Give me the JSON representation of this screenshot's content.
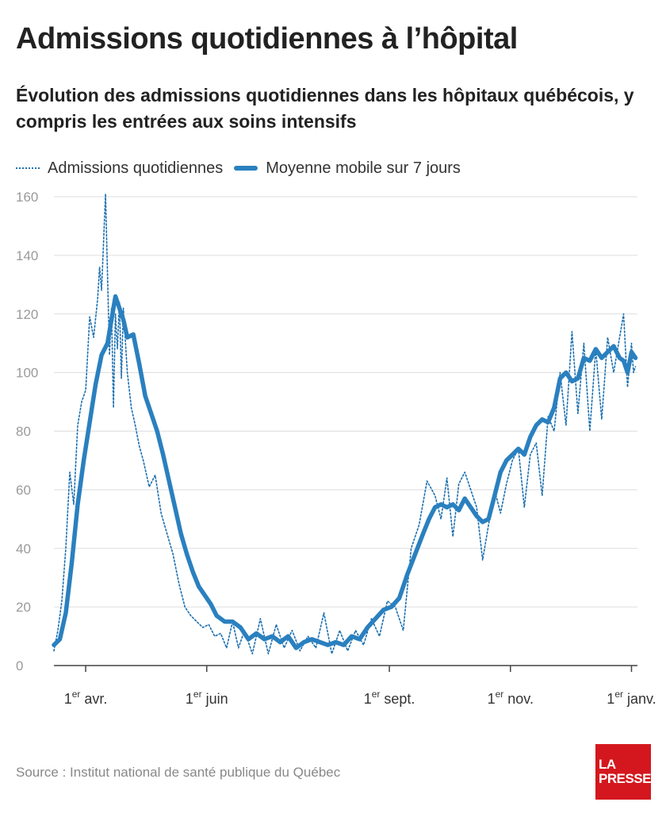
{
  "header": {
    "title": "Admissions quotidiennes à l’hôpital",
    "subtitle": "Évolution des admissions quotidiennes dans les hôpitaux québécois, y compris les entrées aux soins intensifs"
  },
  "legend": {
    "daily_label": "Admissions quotidiennes",
    "avg_label": "Moyenne mobile sur 7 jours"
  },
  "footer": {
    "source": "Source : Institut national de santé publique du Québec"
  },
  "logo": {
    "line1": "LA",
    "line2": "PRESSE"
  },
  "colors": {
    "series": "#2a80bf",
    "daily": "#1a6fb0",
    "grid": "#dddddd",
    "logo_bg": "#d4171e"
  },
  "chart_data": {
    "type": "line",
    "title": "Admissions quotidiennes à l’hôpital",
    "xlabel": "",
    "ylabel": "",
    "ylim": [
      0,
      160
    ],
    "yticks": [
      0,
      20,
      40,
      60,
      80,
      100,
      120,
      140,
      160
    ],
    "xlim": [
      "2020-03-16",
      "2021-01-04"
    ],
    "xticks": [
      {
        "date": "2020-04-01",
        "num": "1",
        "sup": "er",
        "month": "avr."
      },
      {
        "date": "2020-06-01",
        "num": "1",
        "sup": "er",
        "month": "juin"
      },
      {
        "date": "2020-09-01",
        "num": "1",
        "sup": "er",
        "month": "sept."
      },
      {
        "date": "2020-11-01",
        "num": "1",
        "sup": "er",
        "month": "nov."
      },
      {
        "date": "2021-01-01",
        "num": "1",
        "sup": "er",
        "month": "janv."
      }
    ],
    "grid": true,
    "legend_position": "top-left",
    "series": [
      {
        "name": "Admissions quotidiennes",
        "style": "dotted",
        "x": [
          "2020-03-16",
          "2020-03-18",
          "2020-03-20",
          "2020-03-22",
          "2020-03-24",
          "2020-03-26",
          "2020-03-28",
          "2020-03-30",
          "2020-04-01",
          "2020-04-03",
          "2020-04-05",
          "2020-04-07",
          "2020-04-08",
          "2020-04-09",
          "2020-04-11",
          "2020-04-13",
          "2020-04-14",
          "2020-04-15",
          "2020-04-16",
          "2020-04-17",
          "2020-04-18",
          "2020-04-19",
          "2020-04-20",
          "2020-04-22",
          "2020-04-24",
          "2020-04-26",
          "2020-04-28",
          "2020-04-30",
          "2020-05-03",
          "2020-05-06",
          "2020-05-09",
          "2020-05-12",
          "2020-05-15",
          "2020-05-18",
          "2020-05-21",
          "2020-05-24",
          "2020-05-27",
          "2020-05-30",
          "2020-06-02",
          "2020-06-05",
          "2020-06-08",
          "2020-06-11",
          "2020-06-14",
          "2020-06-17",
          "2020-06-20",
          "2020-06-24",
          "2020-06-28",
          "2020-07-02",
          "2020-07-06",
          "2020-07-10",
          "2020-07-14",
          "2020-07-18",
          "2020-07-22",
          "2020-07-26",
          "2020-07-30",
          "2020-08-03",
          "2020-08-07",
          "2020-08-11",
          "2020-08-15",
          "2020-08-19",
          "2020-08-23",
          "2020-08-27",
          "2020-08-31",
          "2020-09-04",
          "2020-09-08",
          "2020-09-12",
          "2020-09-16",
          "2020-09-20",
          "2020-09-24",
          "2020-09-27",
          "2020-09-30",
          "2020-10-03",
          "2020-10-06",
          "2020-10-09",
          "2020-10-12",
          "2020-10-15",
          "2020-10-18",
          "2020-10-21",
          "2020-10-24",
          "2020-10-27",
          "2020-10-30",
          "2020-11-02",
          "2020-11-05",
          "2020-11-08",
          "2020-11-11",
          "2020-11-14",
          "2020-11-17",
          "2020-11-20",
          "2020-11-23",
          "2020-11-26",
          "2020-11-29",
          "2020-12-02",
          "2020-12-05",
          "2020-12-08",
          "2020-12-11",
          "2020-12-14",
          "2020-12-17",
          "2020-12-20",
          "2020-12-23",
          "2020-12-26",
          "2020-12-28",
          "2020-12-30",
          "2021-01-01",
          "2021-01-02",
          "2021-01-03"
        ],
        "y": [
          5,
          12,
          22,
          40,
          66,
          55,
          82,
          90,
          94,
          119,
          112,
          125,
          136,
          128,
          161,
          106,
          122,
          88,
          120,
          108,
          124,
          98,
          122,
          100,
          88,
          82,
          75,
          70,
          61,
          65,
          52,
          45,
          38,
          28,
          20,
          17,
          15,
          13,
          14,
          10,
          11,
          6,
          15,
          6,
          12,
          4,
          16,
          4,
          14,
          6,
          12,
          5,
          10,
          6,
          18,
          4,
          12,
          5,
          12,
          7,
          16,
          10,
          22,
          20,
          12,
          40,
          48,
          63,
          58,
          50,
          64,
          44,
          62,
          66,
          60,
          54,
          36,
          48,
          60,
          52,
          62,
          70,
          74,
          54,
          72,
          76,
          58,
          85,
          80,
          100,
          82,
          114,
          86,
          110,
          80,
          108,
          84,
          112,
          100,
          112,
          120,
          95,
          110,
          100,
          102
        ],
        "values": [
          5,
          12,
          22,
          40,
          66,
          55,
          82,
          90,
          94,
          119,
          112,
          125,
          136,
          128,
          161,
          106,
          122,
          88,
          120,
          108,
          124,
          98,
          122,
          100,
          88,
          82,
          75,
          70,
          61,
          65,
          52,
          45,
          38,
          28,
          20,
          17,
          15,
          13,
          14,
          10,
          11,
          6,
          15,
          6,
          12,
          4,
          16,
          4,
          14,
          6,
          12,
          5,
          10,
          6,
          18,
          4,
          12,
          5,
          12,
          7,
          16,
          10,
          22,
          20,
          12,
          40,
          48,
          63,
          58,
          50,
          64,
          44,
          62,
          66,
          60,
          54,
          36,
          48,
          60,
          52,
          62,
          70,
          74,
          54,
          72,
          76,
          58,
          85,
          80,
          100,
          82,
          114,
          86,
          110,
          80,
          108,
          84,
          112,
          100,
          112,
          120,
          95,
          110,
          100,
          102
        ]
      },
      {
        "name": "Moyenne mobile sur 7 jours",
        "style": "solid",
        "x": [
          "2020-03-16",
          "2020-03-19",
          "2020-03-22",
          "2020-03-25",
          "2020-03-28",
          "2020-03-31",
          "2020-04-03",
          "2020-04-06",
          "2020-04-09",
          "2020-04-12",
          "2020-04-14",
          "2020-04-16",
          "2020-04-18",
          "2020-04-20",
          "2020-04-22",
          "2020-04-25",
          "2020-04-28",
          "2020-05-01",
          "2020-05-04",
          "2020-05-07",
          "2020-05-10",
          "2020-05-13",
          "2020-05-16",
          "2020-05-19",
          "2020-05-22",
          "2020-05-25",
          "2020-05-28",
          "2020-05-31",
          "2020-06-03",
          "2020-06-06",
          "2020-06-10",
          "2020-06-14",
          "2020-06-18",
          "2020-06-22",
          "2020-06-26",
          "2020-06-30",
          "2020-07-04",
          "2020-07-08",
          "2020-07-12",
          "2020-07-16",
          "2020-07-20",
          "2020-07-24",
          "2020-07-28",
          "2020-08-01",
          "2020-08-05",
          "2020-08-09",
          "2020-08-13",
          "2020-08-17",
          "2020-08-21",
          "2020-08-25",
          "2020-08-29",
          "2020-09-02",
          "2020-09-06",
          "2020-09-10",
          "2020-09-14",
          "2020-09-18",
          "2020-09-21",
          "2020-09-24",
          "2020-09-27",
          "2020-09-30",
          "2020-10-03",
          "2020-10-06",
          "2020-10-09",
          "2020-10-12",
          "2020-10-15",
          "2020-10-18",
          "2020-10-21",
          "2020-10-24",
          "2020-10-27",
          "2020-10-30",
          "2020-11-02",
          "2020-11-05",
          "2020-11-08",
          "2020-11-11",
          "2020-11-14",
          "2020-11-17",
          "2020-11-20",
          "2020-11-23",
          "2020-11-26",
          "2020-11-29",
          "2020-12-02",
          "2020-12-05",
          "2020-12-08",
          "2020-12-11",
          "2020-12-14",
          "2020-12-17",
          "2020-12-20",
          "2020-12-23",
          "2020-12-26",
          "2020-12-28",
          "2020-12-30",
          "2021-01-01",
          "2021-01-03"
        ],
        "y": [
          7,
          9,
          18,
          35,
          55,
          70,
          83,
          96,
          106,
          110,
          118,
          126,
          122,
          118,
          112,
          113,
          103,
          92,
          86,
          80,
          72,
          63,
          54,
          45,
          38,
          32,
          27,
          24,
          21,
          17,
          15,
          15,
          13,
          9,
          11,
          9,
          10,
          8,
          10,
          6,
          8,
          9,
          8,
          7,
          8,
          7,
          10,
          9,
          13,
          16,
          19,
          20,
          23,
          31,
          38,
          45,
          50,
          54,
          55,
          54,
          55,
          53,
          57,
          54,
          51,
          49,
          50,
          58,
          66,
          70,
          72,
          74,
          72,
          78,
          82,
          84,
          83,
          88,
          98,
          100,
          97,
          98,
          105,
          104,
          108,
          105,
          107,
          109,
          105,
          104,
          100,
          107,
          105
        ],
        "values": [
          7,
          9,
          18,
          35,
          55,
          70,
          83,
          96,
          106,
          110,
          118,
          126,
          122,
          118,
          112,
          113,
          103,
          92,
          86,
          80,
          72,
          63,
          54,
          45,
          38,
          32,
          27,
          24,
          21,
          17,
          15,
          15,
          13,
          9,
          11,
          9,
          10,
          8,
          10,
          6,
          8,
          9,
          8,
          7,
          8,
          7,
          10,
          9,
          13,
          16,
          19,
          20,
          23,
          31,
          38,
          45,
          50,
          54,
          55,
          54,
          55,
          53,
          57,
          54,
          51,
          49,
          50,
          58,
          66,
          70,
          72,
          74,
          72,
          78,
          82,
          84,
          83,
          88,
          98,
          100,
          97,
          98,
          105,
          104,
          108,
          105,
          107,
          109,
          105,
          104,
          100,
          107,
          105
        ]
      }
    ]
  }
}
